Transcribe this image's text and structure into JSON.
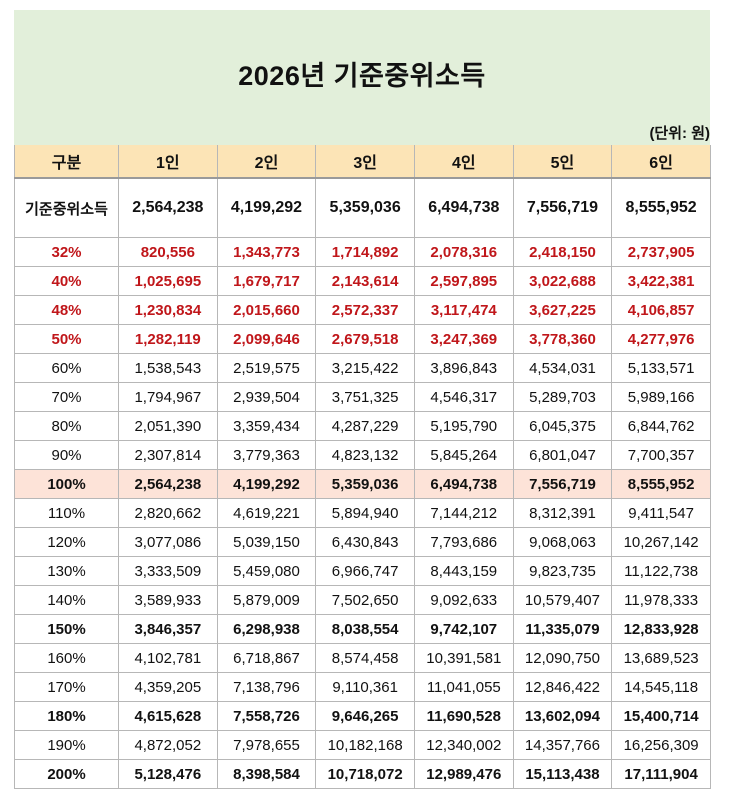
{
  "title": "2026년 기준중위소득",
  "unit": "(단위: 원)",
  "headers": [
    "구분",
    "1인",
    "2인",
    "3인",
    "4인",
    "5인",
    "6인"
  ],
  "median": {
    "label": "기준중위소득",
    "values": [
      "2,564,238",
      "4,199,292",
      "5,359,036",
      "6,494,738",
      "7,556,719",
      "8,555,952"
    ]
  },
  "rows": [
    {
      "label": "32%",
      "values": [
        "820,556",
        "1,343,773",
        "1,714,892",
        "2,078,316",
        "2,418,150",
        "2,737,905"
      ]
    },
    {
      "label": "40%",
      "values": [
        "1,025,695",
        "1,679,717",
        "2,143,614",
        "2,597,895",
        "3,022,688",
        "3,422,381"
      ]
    },
    {
      "label": "48%",
      "values": [
        "1,230,834",
        "2,015,660",
        "2,572,337",
        "3,117,474",
        "3,627,225",
        "4,106,857"
      ]
    },
    {
      "label": "50%",
      "values": [
        "1,282,119",
        "2,099,646",
        "2,679,518",
        "3,247,369",
        "3,778,360",
        "4,277,976"
      ]
    },
    {
      "label": "60%",
      "values": [
        "1,538,543",
        "2,519,575",
        "3,215,422",
        "3,896,843",
        "4,534,031",
        "5,133,571"
      ]
    },
    {
      "label": "70%",
      "values": [
        "1,794,967",
        "2,939,504",
        "3,751,325",
        "4,546,317",
        "5,289,703",
        "5,989,166"
      ]
    },
    {
      "label": "80%",
      "values": [
        "2,051,390",
        "3,359,434",
        "4,287,229",
        "5,195,790",
        "6,045,375",
        "6,844,762"
      ]
    },
    {
      "label": "90%",
      "values": [
        "2,307,814",
        "3,779,363",
        "4,823,132",
        "5,845,264",
        "6,801,047",
        "7,700,357"
      ]
    },
    {
      "label": "100%",
      "values": [
        "2,564,238",
        "4,199,292",
        "5,359,036",
        "6,494,738",
        "7,556,719",
        "8,555,952"
      ]
    },
    {
      "label": "110%",
      "values": [
        "2,820,662",
        "4,619,221",
        "5,894,940",
        "7,144,212",
        "8,312,391",
        "9,411,547"
      ]
    },
    {
      "label": "120%",
      "values": [
        "3,077,086",
        "5,039,150",
        "6,430,843",
        "7,793,686",
        "9,068,063",
        "10,267,142"
      ]
    },
    {
      "label": "130%",
      "values": [
        "3,333,509",
        "5,459,080",
        "6,966,747",
        "8,443,159",
        "9,823,735",
        "11,122,738"
      ]
    },
    {
      "label": "140%",
      "values": [
        "3,589,933",
        "5,879,009",
        "7,502,650",
        "9,092,633",
        "10,579,407",
        "11,978,333"
      ]
    },
    {
      "label": "150%",
      "values": [
        "3,846,357",
        "6,298,938",
        "8,038,554",
        "9,742,107",
        "11,335,079",
        "12,833,928"
      ]
    },
    {
      "label": "160%",
      "values": [
        "4,102,781",
        "6,718,867",
        "8,574,458",
        "10,391,581",
        "12,090,750",
        "13,689,523"
      ]
    },
    {
      "label": "170%",
      "values": [
        "4,359,205",
        "7,138,796",
        "9,110,361",
        "11,041,055",
        "12,846,422",
        "14,545,118"
      ]
    },
    {
      "label": "180%",
      "values": [
        "4,615,628",
        "7,558,726",
        "9,646,265",
        "11,690,528",
        "13,602,094",
        "15,400,714"
      ]
    },
    {
      "label": "190%",
      "values": [
        "4,872,052",
        "7,978,655",
        "10,182,168",
        "12,340,002",
        "14,357,766",
        "16,256,309"
      ]
    },
    {
      "label": "200%",
      "values": [
        "5,128,476",
        "8,398,584",
        "10,718,072",
        "12,989,476",
        "15,113,438",
        "17,111,904"
      ]
    }
  ]
}
